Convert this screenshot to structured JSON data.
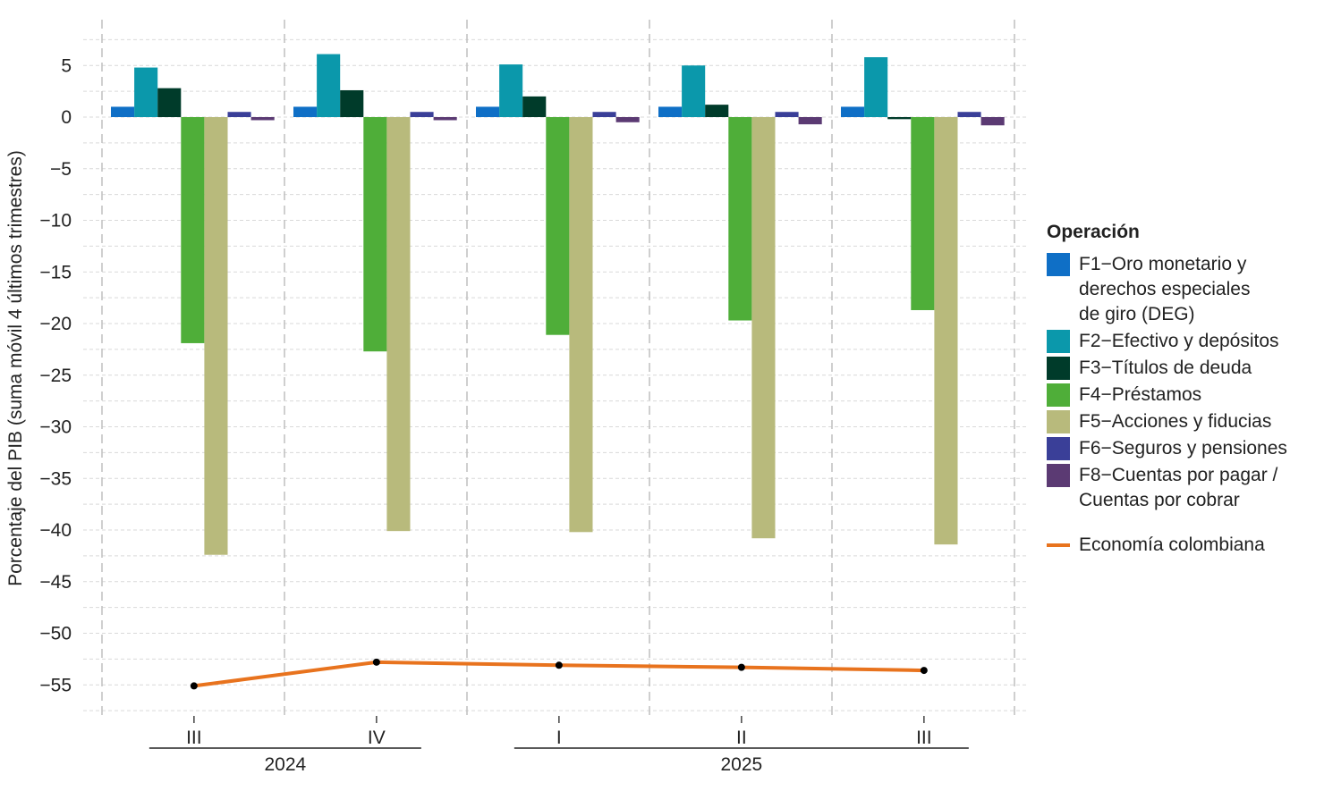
{
  "chart_data": {
    "type": "bar",
    "ylabel": "Porcentaje del PIB (suma móvil 4 últimos trimestres)",
    "ylim": [
      -57,
      8
    ],
    "yticks": [
      5,
      0,
      -5,
      -10,
      -15,
      -20,
      -25,
      -30,
      -35,
      -40,
      -45,
      -50,
      -55
    ],
    "ytick_labels": [
      "5",
      "0",
      "−5",
      "−10",
      "−15",
      "−20",
      "−25",
      "−30",
      "−35",
      "−40",
      "−45",
      "−50",
      "−55"
    ],
    "categories": [
      "III",
      "IV",
      "I",
      "II",
      "III"
    ],
    "years": [
      {
        "label": "2024",
        "start": 0,
        "end": 1
      },
      {
        "label": "2025",
        "start": 2,
        "end": 4
      }
    ],
    "legend_title": "Operación",
    "series": [
      {
        "name": "F1−Oro monetario y\nderechos especiales\nde giro (DEG)",
        "color": "#0f6fc6",
        "values": [
          1.0,
          1.0,
          1.0,
          1.0,
          1.0
        ]
      },
      {
        "name": "F2−Efectivo y depósitos",
        "color": "#0b98ab",
        "values": [
          4.8,
          6.1,
          5.1,
          5.0,
          5.8
        ]
      },
      {
        "name": "F3−Títulos de deuda",
        "color": "#003b2a",
        "values": [
          2.8,
          2.6,
          2.0,
          1.2,
          -0.2
        ]
      },
      {
        "name": "F4−Préstamos",
        "color": "#4fae39",
        "values": [
          -21.9,
          -22.7,
          -21.1,
          -19.7,
          -18.7
        ]
      },
      {
        "name": "F5−Acciones y fiducias",
        "color": "#b8ba7c",
        "values": [
          -42.4,
          -40.1,
          -40.2,
          -40.8,
          -41.4
        ]
      },
      {
        "name": "F6−Seguros y pensiones",
        "color": "#3a3f98",
        "values": [
          0.5,
          0.5,
          0.5,
          0.5,
          0.5
        ]
      },
      {
        "name": "F8−Cuentas por pagar /\nCuentas por cobrar",
        "color": "#5b3a73",
        "values": [
          -0.3,
          -0.3,
          -0.5,
          -0.7,
          -0.8
        ]
      }
    ],
    "line": {
      "name": "Economía colombiana",
      "color": "#e8731e",
      "values": [
        -55.1,
        -52.8,
        -53.1,
        -53.3,
        -53.6
      ]
    }
  }
}
